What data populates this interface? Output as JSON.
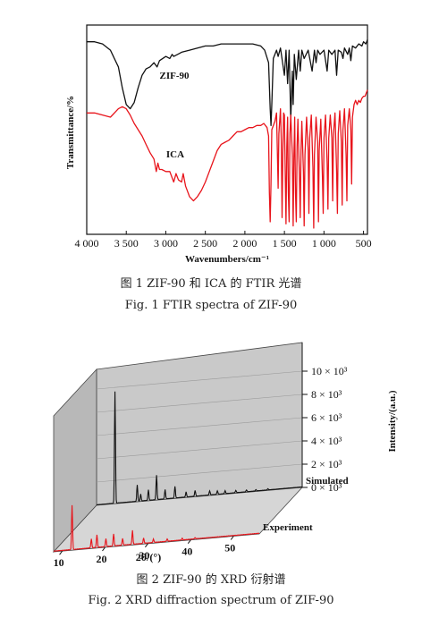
{
  "figure1": {
    "caption_cn": "图 1   ZIF-90 和 ICA 的 FTIR 光谱",
    "caption_en": "Fig. 1   FTIR spectra of ZIF-90"
  },
  "figure2": {
    "caption_cn": "图 2   ZIF-90 的 XRD 衍射谱",
    "caption_en": "Fig. 2   XRD diffraction spectrum of ZIF-90"
  },
  "chart_data": [
    {
      "type": "line",
      "xlabel": "Wavenumbers/cm⁻¹",
      "ylabel": "Transmittance/%",
      "x_ticks": [
        "4 000",
        "3 500",
        "3 000",
        "2 500",
        "2 000",
        "1 500",
        "1 000",
        "500"
      ],
      "xlim": [
        4000,
        450
      ],
      "x_reversed": true,
      "series": [
        {
          "name": "ZIF-90",
          "color": "#111111",
          "points": [
            [
              4000,
              0.92
            ],
            [
              3900,
              0.92
            ],
            [
              3800,
              0.91
            ],
            [
              3700,
              0.88
            ],
            [
              3600,
              0.8
            ],
            [
              3550,
              0.7
            ],
            [
              3500,
              0.62
            ],
            [
              3450,
              0.6
            ],
            [
              3400,
              0.63
            ],
            [
              3350,
              0.7
            ],
            [
              3300,
              0.76
            ],
            [
              3250,
              0.79
            ],
            [
              3200,
              0.8
            ],
            [
              3150,
              0.82
            ],
            [
              3110,
              0.8
            ],
            [
              3080,
              0.83
            ],
            [
              3000,
              0.85
            ],
            [
              2950,
              0.84
            ],
            [
              2920,
              0.86
            ],
            [
              2900,
              0.85
            ],
            [
              2850,
              0.86
            ],
            [
              2800,
              0.87
            ],
            [
              2700,
              0.88
            ],
            [
              2600,
              0.89
            ],
            [
              2500,
              0.9
            ],
            [
              2400,
              0.9
            ],
            [
              2300,
              0.91
            ],
            [
              2200,
              0.91
            ],
            [
              2100,
              0.91
            ],
            [
              2000,
              0.91
            ],
            [
              1900,
              0.91
            ],
            [
              1800,
              0.9
            ],
            [
              1750,
              0.88
            ],
            [
              1700,
              0.82
            ],
            [
              1680,
              0.6
            ],
            [
              1670,
              0.52
            ],
            [
              1660,
              0.62
            ],
            [
              1640,
              0.84
            ],
            [
              1600,
              0.88
            ],
            [
              1580,
              0.85
            ],
            [
              1550,
              0.89
            ],
            [
              1500,
              0.76
            ],
            [
              1480,
              0.88
            ],
            [
              1460,
              0.72
            ],
            [
              1440,
              0.88
            ],
            [
              1420,
              0.55
            ],
            [
              1400,
              0.78
            ],
            [
              1390,
              0.62
            ],
            [
              1375,
              0.86
            ],
            [
              1350,
              0.74
            ],
            [
              1320,
              0.88
            ],
            [
              1300,
              0.78
            ],
            [
              1280,
              0.88
            ],
            [
              1250,
              0.84
            ],
            [
              1200,
              0.88
            ],
            [
              1150,
              0.78
            ],
            [
              1120,
              0.88
            ],
            [
              1100,
              0.82
            ],
            [
              1080,
              0.88
            ],
            [
              1050,
              0.86
            ],
            [
              1000,
              0.88
            ],
            [
              960,
              0.78
            ],
            [
              940,
              0.88
            ],
            [
              900,
              0.86
            ],
            [
              860,
              0.88
            ],
            [
              840,
              0.76
            ],
            [
              820,
              0.88
            ],
            [
              780,
              0.87
            ],
            [
              760,
              0.84
            ],
            [
              740,
              0.89
            ],
            [
              700,
              0.86
            ],
            [
              680,
              0.89
            ],
            [
              660,
              0.83
            ],
            [
              640,
              0.9
            ],
            [
              600,
              0.89
            ],
            [
              560,
              0.91
            ],
            [
              520,
              0.9
            ],
            [
              500,
              0.92
            ],
            [
              470,
              0.91
            ],
            [
              450,
              0.93
            ]
          ]
        },
        {
          "name": "ICA",
          "color": "#e8141b",
          "points": [
            [
              4000,
              0.58
            ],
            [
              3900,
              0.58
            ],
            [
              3800,
              0.57
            ],
            [
              3700,
              0.56
            ],
            [
              3600,
              0.6
            ],
            [
              3550,
              0.61
            ],
            [
              3500,
              0.6
            ],
            [
              3450,
              0.57
            ],
            [
              3400,
              0.53
            ],
            [
              3350,
              0.5
            ],
            [
              3300,
              0.47
            ],
            [
              3250,
              0.43
            ],
            [
              3200,
              0.39
            ],
            [
              3150,
              0.36
            ],
            [
              3120,
              0.3
            ],
            [
              3100,
              0.34
            ],
            [
              3080,
              0.31
            ],
            [
              3050,
              0.31
            ],
            [
              3000,
              0.3
            ],
            [
              2950,
              0.3
            ],
            [
              2900,
              0.25
            ],
            [
              2870,
              0.29
            ],
            [
              2840,
              0.26
            ],
            [
              2800,
              0.25
            ],
            [
              2780,
              0.29
            ],
            [
              2750,
              0.23
            ],
            [
              2700,
              0.18
            ],
            [
              2650,
              0.16
            ],
            [
              2600,
              0.18
            ],
            [
              2550,
              0.21
            ],
            [
              2500,
              0.25
            ],
            [
              2450,
              0.3
            ],
            [
              2400,
              0.35
            ],
            [
              2350,
              0.4
            ],
            [
              2300,
              0.43
            ],
            [
              2250,
              0.44
            ],
            [
              2200,
              0.45
            ],
            [
              2150,
              0.47
            ],
            [
              2100,
              0.49
            ],
            [
              2050,
              0.49
            ],
            [
              2000,
              0.5
            ],
            [
              1950,
              0.51
            ],
            [
              1900,
              0.51
            ],
            [
              1850,
              0.52
            ],
            [
              1800,
              0.52
            ],
            [
              1760,
              0.53
            ],
            [
              1720,
              0.51
            ],
            [
              1700,
              0.47
            ],
            [
              1690,
              0.2
            ],
            [
              1680,
              0.06
            ],
            [
              1670,
              0.24
            ],
            [
              1660,
              0.5
            ],
            [
              1620,
              0.54
            ],
            [
              1600,
              0.58
            ],
            [
              1590,
              0.4
            ],
            [
              1580,
              0.22
            ],
            [
              1570,
              0.48
            ],
            [
              1550,
              0.6
            ],
            [
              1540,
              0.45
            ],
            [
              1530,
              0.08
            ],
            [
              1520,
              0.4
            ],
            [
              1510,
              0.58
            ],
            [
              1500,
              0.57
            ],
            [
              1490,
              0.3
            ],
            [
              1480,
              0.05
            ],
            [
              1470,
              0.42
            ],
            [
              1460,
              0.56
            ],
            [
              1450,
              0.2
            ],
            [
              1440,
              0.06
            ],
            [
              1430,
              0.48
            ],
            [
              1420,
              0.57
            ],
            [
              1400,
              0.38
            ],
            [
              1390,
              0.04
            ],
            [
              1380,
              0.36
            ],
            [
              1370,
              0.56
            ],
            [
              1360,
              0.2
            ],
            [
              1350,
              0.06
            ],
            [
              1340,
              0.42
            ],
            [
              1330,
              0.55
            ],
            [
              1310,
              0.28
            ],
            [
              1300,
              0.08
            ],
            [
              1290,
              0.4
            ],
            [
              1280,
              0.54
            ],
            [
              1260,
              0.3
            ],
            [
              1250,
              0.04
            ],
            [
              1240,
              0.38
            ],
            [
              1220,
              0.56
            ],
            [
              1200,
              0.4
            ],
            [
              1190,
              0.1
            ],
            [
              1180,
              0.46
            ],
            [
              1160,
              0.57
            ],
            [
              1140,
              0.32
            ],
            [
              1130,
              0.03
            ],
            [
              1120,
              0.38
            ],
            [
              1100,
              0.56
            ],
            [
              1080,
              0.44
            ],
            [
              1070,
              0.06
            ],
            [
              1060,
              0.4
            ],
            [
              1040,
              0.55
            ],
            [
              1020,
              0.28
            ],
            [
              1010,
              0.1
            ],
            [
              1000,
              0.46
            ],
            [
              980,
              0.57
            ],
            [
              960,
              0.34
            ],
            [
              950,
              0.12
            ],
            [
              940,
              0.46
            ],
            [
              920,
              0.57
            ],
            [
              900,
              0.46
            ],
            [
              890,
              0.16
            ],
            [
              880,
              0.48
            ],
            [
              860,
              0.58
            ],
            [
              840,
              0.3
            ],
            [
              830,
              0.1
            ],
            [
              820,
              0.48
            ],
            [
              800,
              0.59
            ],
            [
              780,
              0.44
            ],
            [
              770,
              0.14
            ],
            [
              760,
              0.5
            ],
            [
              740,
              0.6
            ],
            [
              720,
              0.38
            ],
            [
              710,
              0.16
            ],
            [
              700,
              0.52
            ],
            [
              680,
              0.6
            ],
            [
              660,
              0.5
            ],
            [
              650,
              0.24
            ],
            [
              640,
              0.56
            ],
            [
              620,
              0.62
            ],
            [
              600,
              0.64
            ],
            [
              580,
              0.62
            ],
            [
              560,
              0.64
            ],
            [
              540,
              0.63
            ],
            [
              520,
              0.65
            ],
            [
              500,
              0.66
            ],
            [
              480,
              0.66
            ],
            [
              460,
              0.68
            ],
            [
              450,
              0.69
            ]
          ]
        }
      ]
    },
    {
      "type": "line",
      "xlabel": "2θ/(°)",
      "ylabel": "Intensity/(a.u.)",
      "x_ticks": [
        "10",
        "20",
        "30",
        "40",
        "50"
      ],
      "xlim": [
        8,
        56
      ],
      "y_ticks": [
        "0 × 10³",
        "2 × 10³",
        "4 × 10³",
        "6 × 10³",
        "8 × 10³",
        "10 × 10³"
      ],
      "ylim": [
        0,
        10000
      ],
      "series": [
        {
          "name": "Simulated",
          "color": "#111111",
          "peaks": [
            [
              12.3,
              9600
            ],
            [
              17.5,
              1400
            ],
            [
              18.3,
              600
            ],
            [
              20.1,
              900
            ],
            [
              22.0,
              2100
            ],
            [
              24.0,
              800
            ],
            [
              26.3,
              1000
            ],
            [
              28.9,
              450
            ],
            [
              31.0,
              500
            ],
            [
              34.4,
              350
            ],
            [
              36.2,
              300
            ],
            [
              38.0,
              250
            ],
            [
              40.5,
              200
            ],
            [
              43.0,
              150
            ],
            [
              45.2,
              120
            ],
            [
              48.0,
              100
            ]
          ]
        },
        {
          "name": "Experiment",
          "color": "#e8141b",
          "peaks": [
            [
              12.3,
              3800
            ],
            [
              16.8,
              800
            ],
            [
              18.1,
              1100
            ],
            [
              20.2,
              700
            ],
            [
              22.0,
              1050
            ],
            [
              24.1,
              600
            ],
            [
              26.4,
              1200
            ],
            [
              29.0,
              450
            ],
            [
              31.3,
              300
            ],
            [
              34.5,
              200
            ],
            [
              38.0,
              150
            ],
            [
              41.0,
              100
            ]
          ]
        }
      ]
    }
  ]
}
